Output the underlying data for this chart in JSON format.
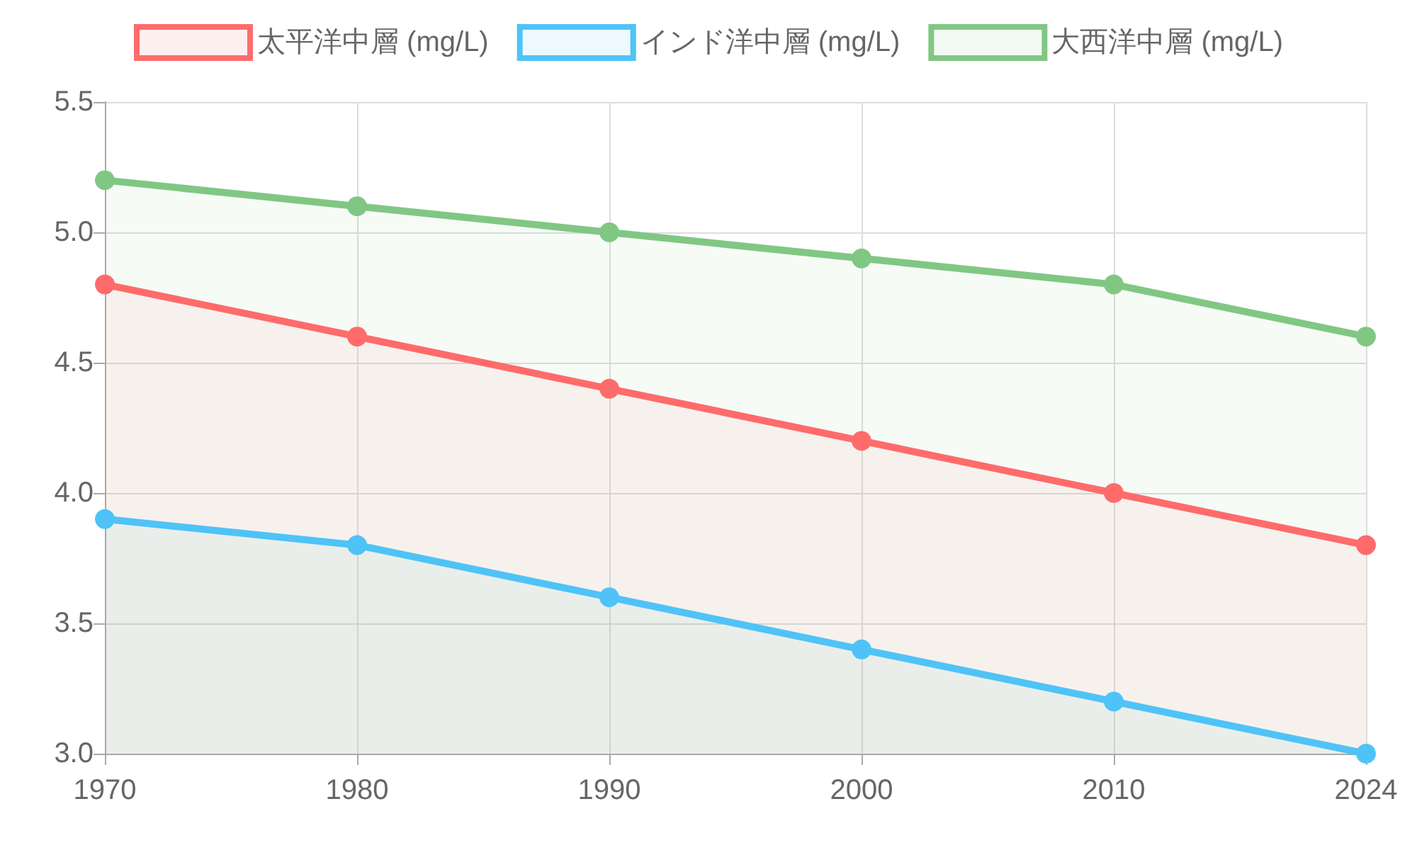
{
  "chart_data": {
    "type": "area",
    "categories": [
      "1970",
      "1980",
      "1990",
      "2000",
      "2010",
      "2024"
    ],
    "series": [
      {
        "name": "太平洋中層 (mg/L)",
        "color": "#ff6b6b",
        "values": [
          4.8,
          4.6,
          4.4,
          4.2,
          4.0,
          3.8
        ]
      },
      {
        "name": "インド洋中層 (mg/L)",
        "color": "#4fc3f7",
        "values": [
          3.9,
          3.8,
          3.6,
          3.4,
          3.2,
          3.0
        ]
      },
      {
        "name": "大西洋中層 (mg/L)",
        "color": "#81c784",
        "values": [
          5.2,
          5.1,
          5.0,
          4.9,
          4.8,
          4.6
        ]
      }
    ],
    "ylim": [
      3.0,
      5.5
    ],
    "yticks": [
      {
        "value": 3,
        "label": "3.0"
      },
      {
        "value": 3.5,
        "label": "3.5"
      },
      {
        "value": 4,
        "label": "4.0"
      },
      {
        "value": 4.5,
        "label": "4.5"
      },
      {
        "value": 5,
        "label": "5.0"
      },
      {
        "value": 5.5,
        "label": "5.5"
      }
    ],
    "grid": true,
    "legend": "top",
    "marker": "circle",
    "line_style": "solid"
  }
}
